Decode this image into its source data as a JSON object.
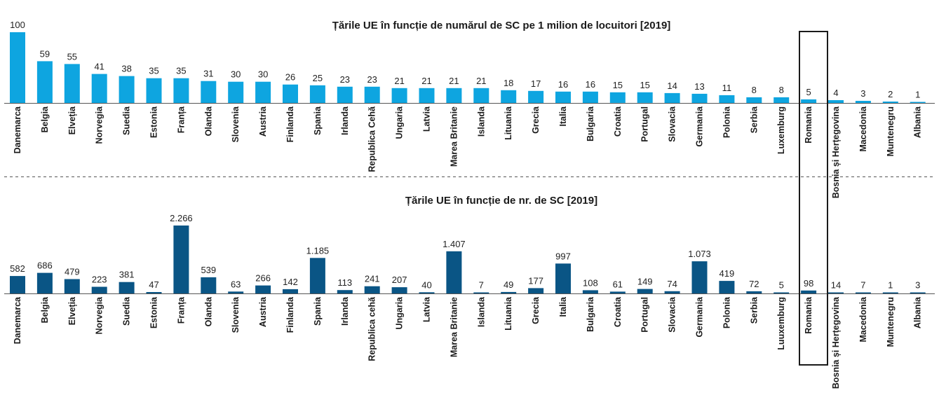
{
  "chart_data": [
    {
      "type": "bar",
      "title": "Țările UE în funcție de numărul de SC pe 1 milion de locuitori [2019]",
      "categories": [
        "Danemarca",
        "Belgia",
        "Elveția",
        "Norvegia",
        "Suedia",
        "Estonia",
        "Franța",
        "Olanda",
        "Slovenia",
        "Austria",
        "Finlanda",
        "Spania",
        "Irlanda",
        "Republica Cehă",
        "Ungaria",
        "Latvia",
        "Marea Britanie",
        "Islanda",
        "Lituania",
        "Grecia",
        "Italia",
        "Bulgaria",
        "Croatia",
        "Portugal",
        "Slovacia",
        "Germania",
        "Polonia",
        "Serbia",
        "Luxemburg",
        "Romania",
        "Bosnia și Herțegovina",
        "Macedonia",
        "Muntenegru",
        "Albania"
      ],
      "values": [
        100,
        59,
        55,
        41,
        38,
        35,
        35,
        31,
        30,
        30,
        26,
        25,
        23,
        23,
        21,
        21,
        21,
        21,
        18,
        17,
        16,
        16,
        15,
        15,
        14,
        13,
        11,
        8,
        8,
        5,
        4,
        3,
        2,
        1
      ],
      "value_labels": [
        "100",
        "59",
        "55",
        "41",
        "38",
        "35",
        "35",
        "31",
        "30",
        "30",
        "26",
        "25",
        "23",
        "23",
        "21",
        "21",
        "21",
        "21",
        "18",
        "17",
        "16",
        "16",
        "15",
        "15",
        "14",
        "13",
        "11",
        "8",
        "8",
        "5",
        "4",
        "3",
        "2",
        "1"
      ],
      "color": "#0ea5e0",
      "ylim": [
        0,
        100
      ]
    },
    {
      "type": "bar",
      "title": "Țările UE în funcție de nr. de SC [2019]",
      "categories": [
        "Danemarca",
        "Belgia",
        "Elveția",
        "Norvegia",
        "Suedia",
        "Estonia",
        "Franța",
        "Olanda",
        "Slovenia",
        "Austria",
        "Finlanda",
        "Spania",
        "Irlanda",
        "Republica cehă",
        "Ungaria",
        "Latvia",
        "Marea Britanie",
        "Islanda",
        "Lituania",
        "Grecia",
        "Italia",
        "Bulgaria",
        "Croatia",
        "Portugal",
        "Slovacia",
        "Germania",
        "Polonia",
        "Serbia",
        "Luuxemburg",
        "Romania",
        "Bosnia și Herțegovina",
        "Macedonia",
        "Muntenegru",
        "Albania"
      ],
      "values": [
        582,
        686,
        479,
        223,
        381,
        47,
        2266,
        539,
        63,
        266,
        142,
        1185,
        113,
        241,
        207,
        40,
        1407,
        7,
        49,
        177,
        997,
        108,
        61,
        149,
        74,
        1073,
        419,
        72,
        5,
        98,
        14,
        7,
        1,
        3
      ],
      "value_labels": [
        "582",
        "686",
        "479",
        "223",
        "381",
        "47",
        "2.266",
        "539",
        "63",
        "266",
        "142",
        "1.185",
        "113",
        "241",
        "207",
        "40",
        "1.407",
        "7",
        "49",
        "177",
        "997",
        "108",
        "61",
        "149",
        "74",
        "1.073",
        "419",
        "72",
        "5",
        "98",
        "14",
        "7",
        "1",
        "3"
      ],
      "color": "#0a5585",
      "ylim": [
        0,
        2266
      ]
    }
  ],
  "highlight": "Romania"
}
